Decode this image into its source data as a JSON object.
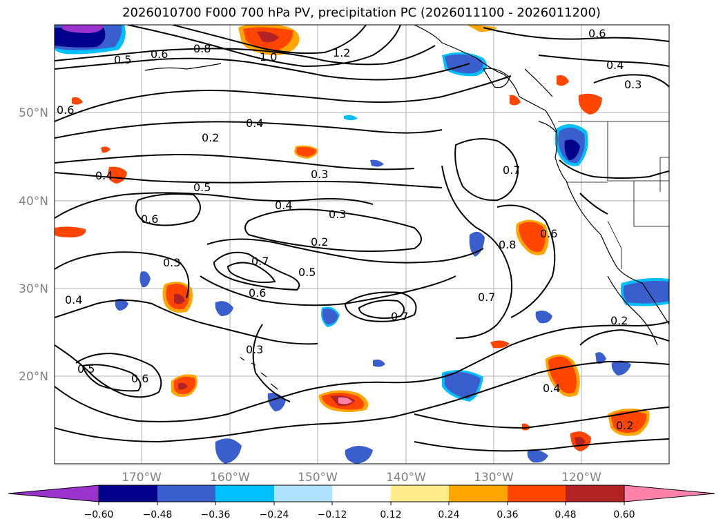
{
  "title": "2026010700 F000 700 hPa PV, precipitation PC (2026011100 - 2026011200)",
  "lat_labels": [
    "50°N",
    "40°N",
    "30°N",
    "20°N"
  ],
  "lon_labels": [
    "170°W",
    "160°W",
    "150°W",
    "140°W",
    "130°W",
    "120°W"
  ],
  "colorbar": {
    "ticks": [
      "−0.60",
      "−0.48",
      "−0.36",
      "−0.24",
      "−0.12",
      "0.12",
      "0.24",
      "0.36",
      "0.48",
      "0.60"
    ],
    "colors": [
      "#9a32cd",
      "#00008b",
      "#3a5fcd",
      "#00bfff",
      "#b0e2ff",
      "#ffffff",
      "#ffec8b",
      "#ffa500",
      "#ff4500",
      "#b22222",
      "#ff82ab"
    ]
  },
  "contour_labels": [
    "0.6",
    "0.8",
    "0.5",
    "1.0",
    "1.2",
    "0.6",
    "0.4",
    "0.3",
    "0.6",
    "0.4",
    "0.2",
    "0.4",
    "0.3",
    "0.7",
    "0.5",
    "0.4",
    "0.3",
    "0.6",
    "0.2",
    "0.8",
    "0.6",
    "0.3",
    "0.7",
    "0.5",
    "0.6",
    "0.7",
    "0.7",
    "0.4",
    "0.2",
    "0.3",
    "0.5",
    "0.6",
    "0.4",
    "0.2"
  ]
}
